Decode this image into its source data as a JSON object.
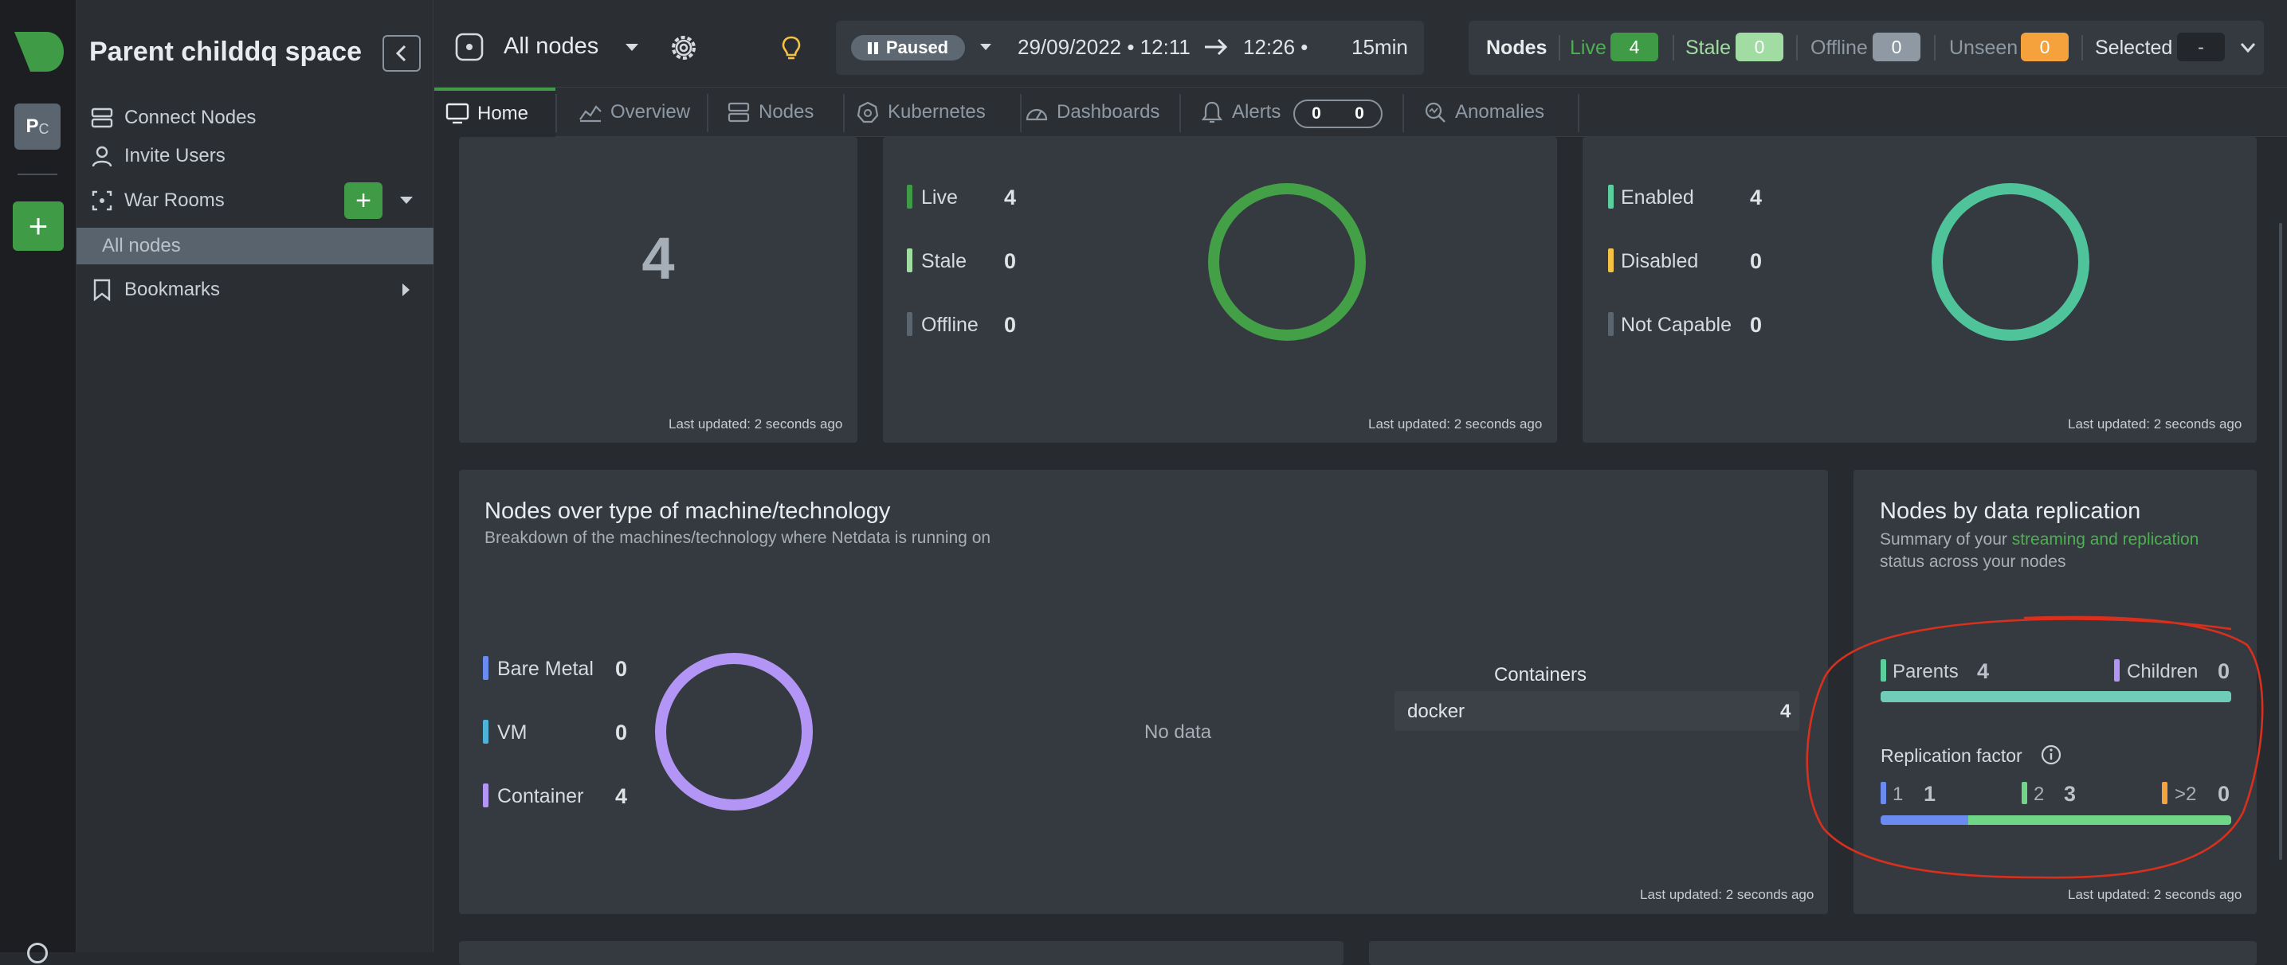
{
  "sidebar": {
    "space_title": "Parent childdq space",
    "space_avatar": [
      "P",
      "C"
    ],
    "connect_nodes": "Connect Nodes",
    "invite_users": "Invite Users",
    "war_rooms": "War Rooms",
    "all_nodes_room": "All nodes",
    "bookmarks": "Bookmarks"
  },
  "header": {
    "room_selector": "All nodes",
    "playback": {
      "state": "Paused",
      "date_start": "29/09/2022 • 12:11",
      "end_time": "12:26 •",
      "duration": "15min"
    },
    "nodes_status": {
      "title": "Nodes",
      "live_label": "Live",
      "live_count": "4",
      "stale_label": "Stale",
      "stale_count": "0",
      "offline_label": "Offline",
      "offline_count": "0",
      "unseen_label": "Unseen",
      "unseen_count": "0",
      "selected_label": "Selected",
      "selected_value": "-"
    }
  },
  "tabs": [
    {
      "label": "Home",
      "icon": "monitor-icon",
      "active": true
    },
    {
      "label": "Overview",
      "icon": "overview-icon"
    },
    {
      "label": "Nodes",
      "icon": "nodes-icon"
    },
    {
      "label": "Kubernetes",
      "icon": "kubernetes-icon"
    },
    {
      "label": "Dashboards",
      "icon": "dashboard-icon"
    },
    {
      "label": "Alerts",
      "icon": "bell-icon",
      "critical": "0",
      "warning": "0"
    },
    {
      "label": "Anomalies",
      "icon": "anomalies-icon"
    }
  ],
  "cards": {
    "total": {
      "value": "4",
      "updated": "Last updated: 2 seconds ago"
    },
    "status": {
      "items": [
        {
          "label": "Live",
          "value": "4",
          "color": "#3f9b45"
        },
        {
          "label": "Stale",
          "value": "0",
          "color": "#a1dca3"
        },
        {
          "label": "Offline",
          "value": "0",
          "color": "#5b6570"
        }
      ],
      "ring_color": "#43a047",
      "updated": "Last updated: 2 seconds ago"
    },
    "ml": {
      "items": [
        {
          "label": "Enabled",
          "value": "4",
          "color": "#5ccf9f"
        },
        {
          "label": "Disabled",
          "value": "0",
          "color": "#f6c244"
        },
        {
          "label": "Not Capable",
          "value": "0",
          "color": "#5b6570"
        }
      ],
      "ring_color": "#4fc49a",
      "updated": "Last updated: 2 seconds ago"
    },
    "machine": {
      "title": "Nodes over type of machine/technology",
      "subtitle": "Breakdown of the machines/technology where Netdata is running on",
      "items": [
        {
          "label": "Bare Metal",
          "value": "0",
          "color": "#6a8cf1"
        },
        {
          "label": "VM",
          "value": "0",
          "color": "#4fb3d9"
        },
        {
          "label": "Container",
          "value": "4",
          "color": "#b395f5"
        }
      ],
      "ring_color": "#b395f5",
      "no_data": "No data",
      "containers_title": "Containers",
      "containers": [
        {
          "name": "docker",
          "count": "4"
        }
      ],
      "updated": "Last updated: 2 seconds ago"
    },
    "replication": {
      "title": "Nodes by data replication",
      "subtitle_pre": "Summary of your ",
      "subtitle_link": "streaming and replication",
      "subtitle_post": "status across your nodes",
      "parents_label": "Parents",
      "parents_value": "4",
      "children_label": "Children",
      "children_value": "0",
      "parents_fraction": 1.0,
      "factor_title": "Replication factor",
      "factors": [
        {
          "label": "1",
          "value": "1",
          "color": "#6a8cf1"
        },
        {
          "label": "2",
          "value": "3",
          "color": "#6fd587"
        },
        {
          "label": ">2",
          "value": "0",
          "color": "#f6a23c"
        }
      ],
      "updated": "Last updated: 2 seconds ago"
    }
  }
}
